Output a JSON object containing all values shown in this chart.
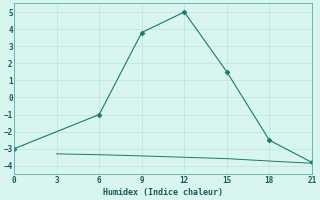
{
  "line1_x": [
    0,
    6,
    9,
    12,
    15,
    18,
    21
  ],
  "line1_y": [
    -3,
    -1,
    3.8,
    5,
    1.5,
    -2.5,
    -3.8
  ],
  "line2_x": [
    3,
    6,
    9,
    12,
    15,
    18,
    21
  ],
  "line2_y": [
    -3.3,
    -3.35,
    -3.42,
    -3.5,
    -3.58,
    -3.72,
    -3.85
  ],
  "line_color": "#1a7a6e",
  "bg_color": "#d8f5f0",
  "xlabel": "Humidex (Indice chaleur)",
  "xlim": [
    0,
    21
  ],
  "ylim": [
    -4.5,
    5.5
  ],
  "xticks": [
    0,
    3,
    6,
    9,
    12,
    15,
    18,
    21
  ],
  "yticks": [
    -4,
    -3,
    -2,
    -1,
    0,
    1,
    2,
    3,
    4,
    5
  ],
  "grid_color": "#c0e8e0"
}
